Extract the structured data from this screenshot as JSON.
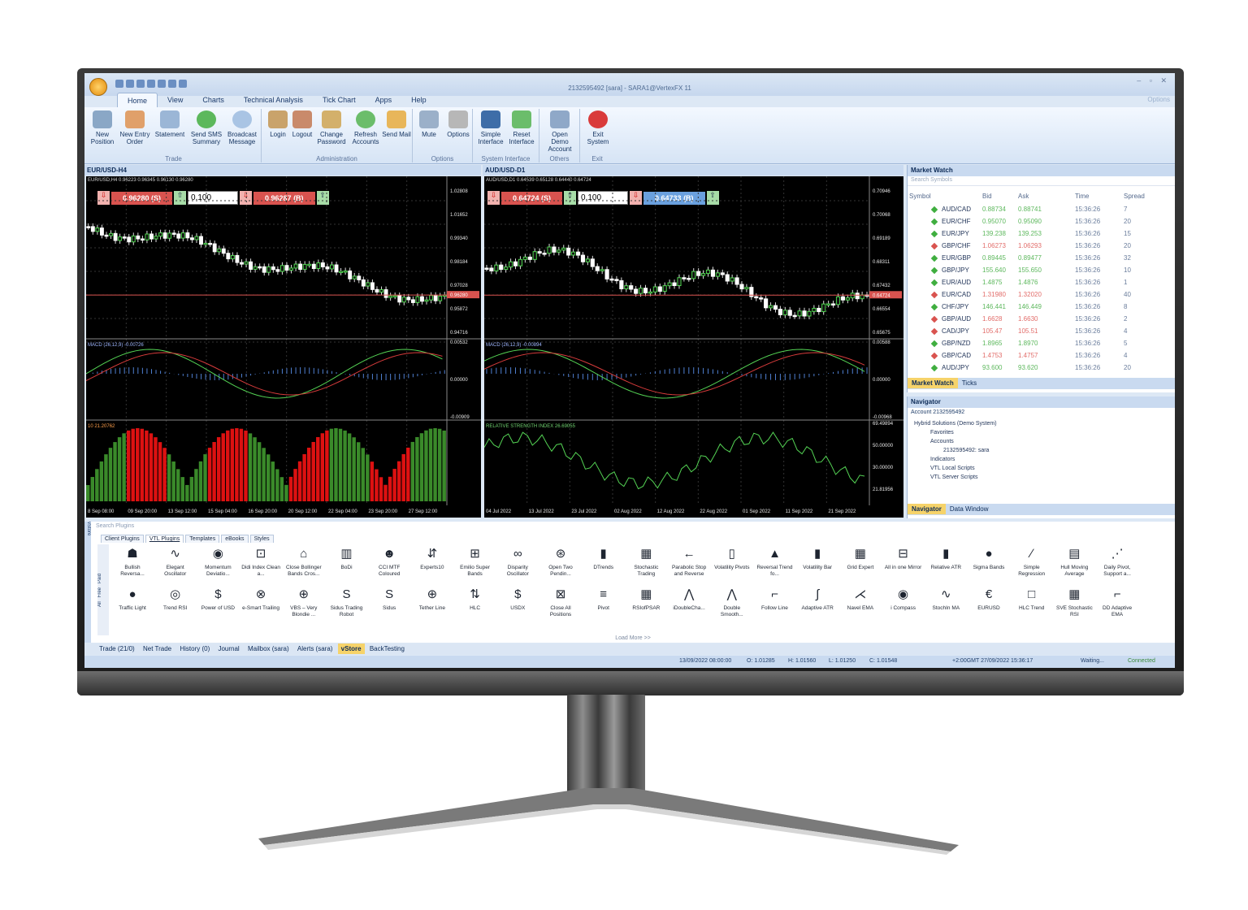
{
  "window": {
    "title": "2132595492 [sara] - SARA1@VertexFX 11",
    "options_link": "Options",
    "tabs": [
      "Home",
      "View",
      "Charts",
      "Technical Analysis",
      "Tick Chart",
      "Apps",
      "Help"
    ]
  },
  "ribbon": {
    "trade": {
      "label": "Trade",
      "buttons": [
        "New Position",
        "New Entry Order",
        "Statement",
        "Send SMS Summary",
        "Broadcast Message"
      ]
    },
    "administration": {
      "label": "Administration",
      "buttons": [
        "Login",
        "Logout",
        "Change Password",
        "Refresh Accounts",
        "Send Mail"
      ]
    },
    "options": {
      "label": "Options",
      "buttons": [
        "Mute",
        "Options"
      ]
    },
    "system_interface": {
      "label": "System Interface",
      "buttons": [
        "Simple Interface",
        "Reset Interface"
      ]
    },
    "others": {
      "label": "Others",
      "buttons": [
        "Open Demo Account"
      ]
    },
    "exit": {
      "label": "Exit",
      "buttons": [
        "Exit System"
      ]
    }
  },
  "chart_left": {
    "title": "EUR/USD-H4",
    "ohlc": "EUR/USD,H4  0.96223  0.96345  0.96130  0.96280",
    "sell": "0.96280  (S)",
    "buy": "0.96287  (B)",
    "lot": "0.100",
    "price_axis": [
      "1.02808",
      "1.01652",
      "0.99340",
      "0.98184",
      "0.97028",
      "0.95872",
      "0.94716"
    ],
    "current_price": "0.96280",
    "macd_label": "MACD (26,12,9)  -0.00726",
    "macd_axis": [
      "0.00532",
      "0.00000",
      "-0.00909"
    ],
    "vol_label": "10  21.20762",
    "time_axis": [
      "8 Sep 08:00",
      "09 Sep 20:00",
      "13 Sep 12:00",
      "15 Sep 04:00",
      "16 Sep 20:00",
      "20 Sep 12:00",
      "22 Sep 04:00",
      "23 Sep 20:00",
      "27 Sep 12:00"
    ]
  },
  "chart_right": {
    "title": "AUD/USD-D1",
    "ohlc": "AUD/USD,D1  0.64539  0.65128  0.64440  0.64724",
    "sell": "0.64724  (S)",
    "buy": "0.64733  (B)",
    "lot": "0.100",
    "price_axis": [
      "0.70946",
      "0.70068",
      "0.69189",
      "0.68311",
      "0.67432",
      "0.66554",
      "0.65675"
    ],
    "current_price": "0.64724",
    "macd_label": "MACD (26,12,9)  -0.00894",
    "macd_axis": [
      "0.00588",
      "0.00000",
      "-0.00968"
    ],
    "rsi_label": "RELATIVE STRENGTH INDEX  26.69055",
    "rsi_axis": [
      "69.49894",
      "50.00000",
      "30.00000",
      "21.81956"
    ],
    "time_axis": [
      "04 Jul 2022",
      "13 Jul 2022",
      "23 Jul 2022",
      "02 Aug 2022",
      "12 Aug 2022",
      "22 Aug 2022",
      "01 Sep 2022",
      "11 Sep 2022",
      "21 Sep 2022"
    ]
  },
  "market_watch": {
    "title": "Market Watch",
    "search_placeholder": "Search Symbols",
    "columns": [
      "Symbol",
      "Bid",
      "Ask",
      "Time",
      "Spread"
    ],
    "rows": [
      {
        "symbol": "AUD/CAD",
        "bid": "0.88734",
        "ask": "0.88741",
        "time": "15:36:26",
        "spread": "7",
        "dir": "up"
      },
      {
        "symbol": "EUR/CHF",
        "bid": "0.95070",
        "ask": "0.95090",
        "time": "15:36:26",
        "spread": "20",
        "dir": "up"
      },
      {
        "symbol": "EUR/JPY",
        "bid": "139.238",
        "ask": "139.253",
        "time": "15:36:26",
        "spread": "15",
        "dir": "up"
      },
      {
        "symbol": "GBP/CHF",
        "bid": "1.06273",
        "ask": "1.06293",
        "time": "15:36:26",
        "spread": "20",
        "dir": "down"
      },
      {
        "symbol": "EUR/GBP",
        "bid": "0.89445",
        "ask": "0.89477",
        "time": "15:36:26",
        "spread": "32",
        "dir": "up"
      },
      {
        "symbol": "GBP/JPY",
        "bid": "155.640",
        "ask": "155.650",
        "time": "15:36:26",
        "spread": "10",
        "dir": "up"
      },
      {
        "symbol": "EUR/AUD",
        "bid": "1.4875",
        "ask": "1.4876",
        "time": "15:36:26",
        "spread": "1",
        "dir": "up"
      },
      {
        "symbol": "EUR/CAD",
        "bid": "1.31980",
        "ask": "1.32020",
        "time": "15:36:26",
        "spread": "40",
        "dir": "down"
      },
      {
        "symbol": "CHF/JPY",
        "bid": "146.441",
        "ask": "146.449",
        "time": "15:36:26",
        "spread": "8",
        "dir": "up"
      },
      {
        "symbol": "GBP/AUD",
        "bid": "1.6628",
        "ask": "1.6630",
        "time": "15:36:26",
        "spread": "2",
        "dir": "down"
      },
      {
        "symbol": "CAD/JPY",
        "bid": "105.47",
        "ask": "105.51",
        "time": "15:36:26",
        "spread": "4",
        "dir": "down"
      },
      {
        "symbol": "GBP/NZD",
        "bid": "1.8965",
        "ask": "1.8970",
        "time": "15:36:26",
        "spread": "5",
        "dir": "up"
      },
      {
        "symbol": "GBP/CAD",
        "bid": "1.4753",
        "ask": "1.4757",
        "time": "15:36:26",
        "spread": "4",
        "dir": "down"
      },
      {
        "symbol": "AUD/JPY",
        "bid": "93.600",
        "ask": "93.620",
        "time": "15:36:26",
        "spread": "20",
        "dir": "up"
      }
    ],
    "tabs": [
      "Market Watch",
      "Ticks"
    ]
  },
  "navigator": {
    "title": "Navigator",
    "account_label": "Account",
    "account_value": "2132595492",
    "tree": [
      "Hybrid Solutions (Demo System)",
      "Favorites",
      "Accounts",
      "2132595492: sara",
      "Indicators",
      "VTL Local Scripts",
      "VTL Server Scripts"
    ],
    "tabs": [
      "Navigator",
      "Data Window"
    ]
  },
  "vstore": {
    "side_label": "vStore",
    "search_placeholder": "Search Plugins",
    "tabs": [
      "Client Plugins",
      "VTL Plugins",
      "Templates",
      "eBooks",
      "Styles"
    ],
    "filters": [
      "All",
      "Free",
      "Paid"
    ],
    "row1": [
      "Bullish Reversa...",
      "Elegant Oscillator",
      "Momentum Deviatio...",
      "Didi Index Clean a...",
      "Close Bollinger Bands Cros...",
      "BoDi",
      "CCI MTF Coloured",
      "Experts10",
      "Emilio Super Bands",
      "Disparity Oscillator",
      "Open Two Pendin...",
      "DTrends",
      "Stochastic Trading",
      "Parabolic Stop and Reverse",
      "Volatility Pivots",
      "Reversal Trend fo...",
      "Volatility Bar",
      "Grid Expert",
      "All in one Mirror",
      "Relative ATR",
      "Sigma Bands",
      "Simple Regression",
      "Hull Moving Average",
      "Daily Pivot, Support a..."
    ],
    "row2": [
      "Traffic Light",
      "Trend RSI",
      "Power of USD",
      "e-Smart Trailing",
      "VBS – Very Blondie ...",
      "Sidus Trading Robot",
      "Sidus",
      "Tether Line",
      "HLC",
      "USDX",
      "Close All Positions",
      "Pivot",
      "RSIofPSAR",
      "iDoubleCha...",
      "Double Smooth...",
      "Follow Line",
      "Adaptive ATR",
      "Navel EMA",
      "i Compass",
      "StochIn MA",
      "EURUSD",
      "HLC Trend",
      "SVE Stochastic RSI",
      "DD Adaptive EMA"
    ],
    "load_more": "Load More >>"
  },
  "terminal_tabs": [
    "Trade (21/0)",
    "Net Trade",
    "History (0)",
    "Journal",
    "Mailbox (sara)",
    "Alerts (sara)",
    "vStore",
    "BackTesting"
  ],
  "status_bar": {
    "datetime": "13/09/2022 08:00:00",
    "open": "O: 1.01285",
    "high": "H: 1.01560",
    "low": "L: 1.01250",
    "close": "C: 1.01548",
    "server_time": "+2:00GMT  27/09/2022 15:36:17",
    "state": "Waiting...",
    "connection": "Connected"
  },
  "colors": {
    "up": "#3fae3f",
    "down": "#d9534f",
    "bid_up": "#5db85d",
    "bid_down": "#e26d6a"
  }
}
